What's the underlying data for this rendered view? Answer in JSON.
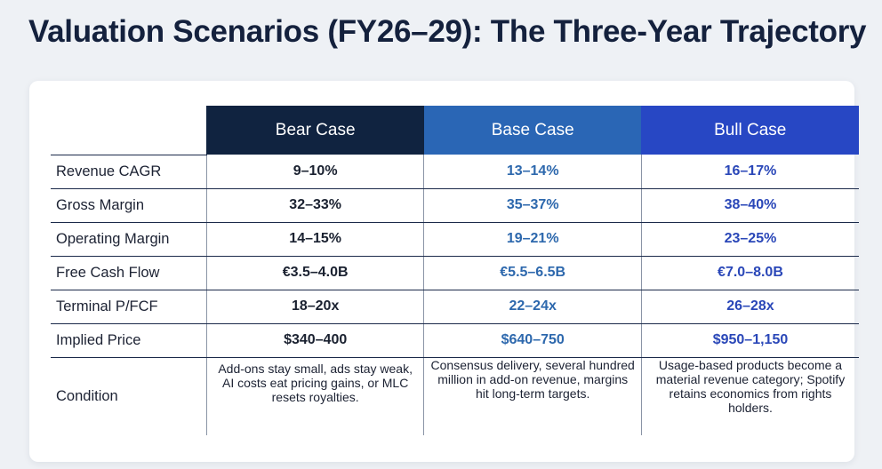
{
  "title": "Valuation Scenarios (FY26–29): The Three-Year Trajectory",
  "table": {
    "columns": [
      "",
      "Bear Case",
      "Base Case",
      "Bull Case"
    ],
    "rows": [
      {
        "label": "Revenue CAGR",
        "bear": "9–10%",
        "base": "13–14%",
        "bull": "16–17%"
      },
      {
        "label": "Gross Margin",
        "bear": "32–33%",
        "base": "35–37%",
        "bull": "38–40%"
      },
      {
        "label": "Operating Margin",
        "bear": "14–15%",
        "base": "19–21%",
        "bull": "23–25%"
      },
      {
        "label": "Free Cash Flow",
        "bear": "€3.5–4.0B",
        "base": "€5.5–6.5B",
        "bull": "€7.0–8.0B"
      },
      {
        "label": "Terminal P/FCF",
        "bear": "18–20x",
        "base": "22–24x",
        "bull": "26–28x"
      },
      {
        "label": "Implied Price",
        "bear": "$340–400",
        "base": "$640–750",
        "bull": "$950–1,150"
      }
    ],
    "condition": {
      "label": "Condition",
      "bear": "Add-ons stay small, ads stay weak, AI costs eat pricing gains, or MLC resets royalties.",
      "base": "Consensus delivery, several hundred million in add-on revenue, margins hit long-term targets.",
      "bull": "Usage-based products become a material revenue category; Spotify retains economics from rights holders."
    }
  },
  "colors": {
    "bear_header": "#102340",
    "base_header": "#2a66b5",
    "bull_header": "#2747c4",
    "base_value": "#2d68ad",
    "bull_value": "#2a47b8"
  }
}
